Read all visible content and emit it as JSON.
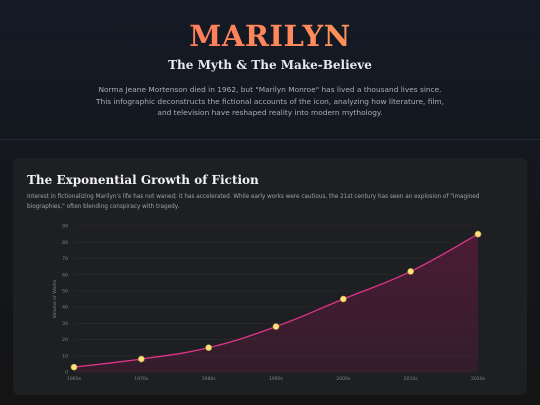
{
  "hero": {
    "title": "MARILYN",
    "subtitle": "The Myth & The Make-Believe",
    "intro": "Norma Jeane Mortenson died in 1962, but \"Marilyn Monroe\" has lived a thousand lives since. This infographic deconstructs the fictional accounts of the icon, analyzing how literature, film, and television have reshaped reality into modern mythology."
  },
  "section": {
    "title": "The Exponential Growth of Fiction",
    "description": "Interest in fictionalizing Marilyn's life has not waned; it has accelerated. While early works were cautious, the 21st century has seen an explosion of \"imagined biographies,\" often blending conspiracy with tragedy."
  },
  "colors": {
    "line": "#e0348a",
    "fill": "#5a1a3a",
    "point": "#ffe27a",
    "grid": "#2c2e33"
  },
  "chart_data": {
    "type": "area",
    "title": "",
    "xlabel": "",
    "ylabel": "Volume of Works",
    "categories": [
      "1960s",
      "1970s",
      "1980s",
      "1990s",
      "2000s",
      "2010s",
      "2020s"
    ],
    "series": [
      {
        "values": [
          3,
          8,
          15,
          28,
          45,
          62,
          85
        ]
      }
    ],
    "ylim": [
      0,
      90
    ],
    "yticks": [
      0,
      10,
      20,
      30,
      40,
      50,
      60,
      70,
      80,
      90
    ],
    "grid": true,
    "legend": "none"
  }
}
